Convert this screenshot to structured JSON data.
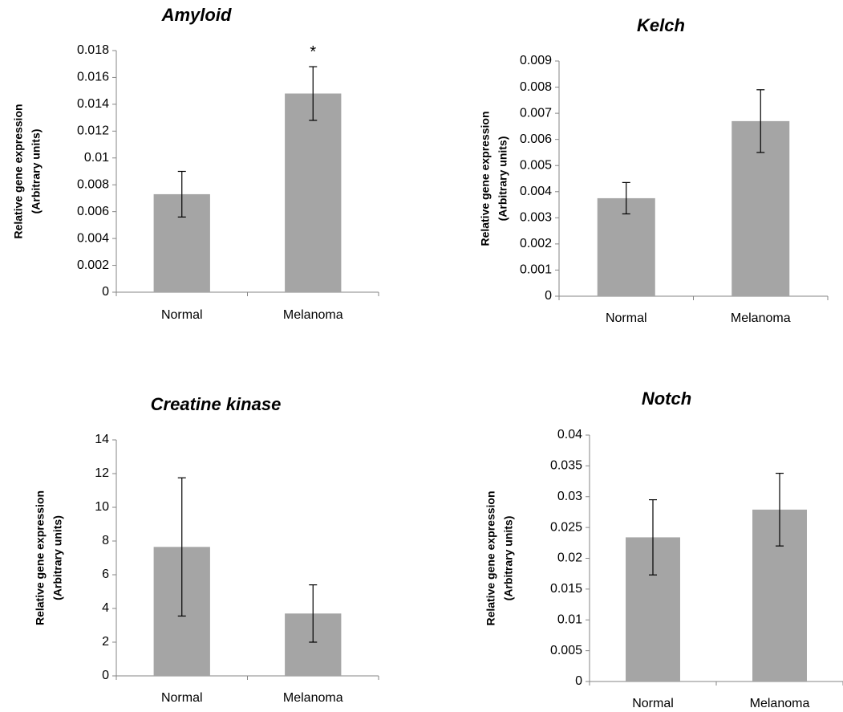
{
  "chart_data": [
    {
      "type": "bar",
      "title": "Amyloid",
      "ylabel": "Relative gene expression",
      "ylabel_sub": "(Arbitrary units)",
      "categories": [
        "Normal",
        "Melanoma"
      ],
      "values": [
        0.0073,
        0.0148
      ],
      "errors": [
        0.0017,
        0.002
      ],
      "annotations": [
        "",
        "*"
      ],
      "ylim": [
        0,
        0.018
      ],
      "yticks": [
        "0",
        "0.002",
        "0.004",
        "0.006",
        "0.008",
        "0.01",
        "0.012",
        "0.014",
        "0.016",
        "0.018"
      ],
      "grid": false,
      "bar_color": "#a5a5a5"
    },
    {
      "type": "bar",
      "title": "Kelch",
      "ylabel": "Relative gene expression",
      "ylabel_sub": "(Arbitrary units)",
      "categories": [
        "Normal",
        "Melanoma"
      ],
      "values": [
        0.00375,
        0.0067
      ],
      "errors": [
        0.0006,
        0.0012
      ],
      "annotations": [
        "",
        ""
      ],
      "ylim": [
        0,
        0.009
      ],
      "yticks": [
        "0",
        "0.001",
        "0.002",
        "0.003",
        "0.004",
        "0.005",
        "0.006",
        "0.007",
        "0.008",
        "0.009"
      ],
      "grid": false,
      "bar_color": "#a5a5a5"
    },
    {
      "type": "bar",
      "title": "Creatine kinase",
      "ylabel": "Relative gene expression",
      "ylabel_sub": "(Arbitrary units)",
      "categories": [
        "Normal",
        "Melanoma"
      ],
      "values": [
        7.65,
        3.7
      ],
      "errors": [
        4.1,
        1.7
      ],
      "annotations": [
        "",
        ""
      ],
      "ylim": [
        0,
        14
      ],
      "yticks": [
        "0",
        "2",
        "4",
        "6",
        "8",
        "10",
        "12",
        "14"
      ],
      "grid": false,
      "bar_color": "#a5a5a5"
    },
    {
      "type": "bar",
      "title": "Notch",
      "ylabel": "Relative gene expression",
      "ylabel_sub": "(Arbitrary units)",
      "categories": [
        "Normal",
        "Melanoma"
      ],
      "values": [
        0.0234,
        0.0279
      ],
      "errors": [
        0.0061,
        0.0059
      ],
      "annotations": [
        "",
        ""
      ],
      "ylim": [
        0,
        0.04
      ],
      "yticks": [
        "0",
        "0.005",
        "0.01",
        "0.015",
        "0.02",
        "0.025",
        "0.03",
        "0.035",
        "0.04"
      ],
      "grid": false,
      "bar_color": "#a5a5a5"
    }
  ]
}
